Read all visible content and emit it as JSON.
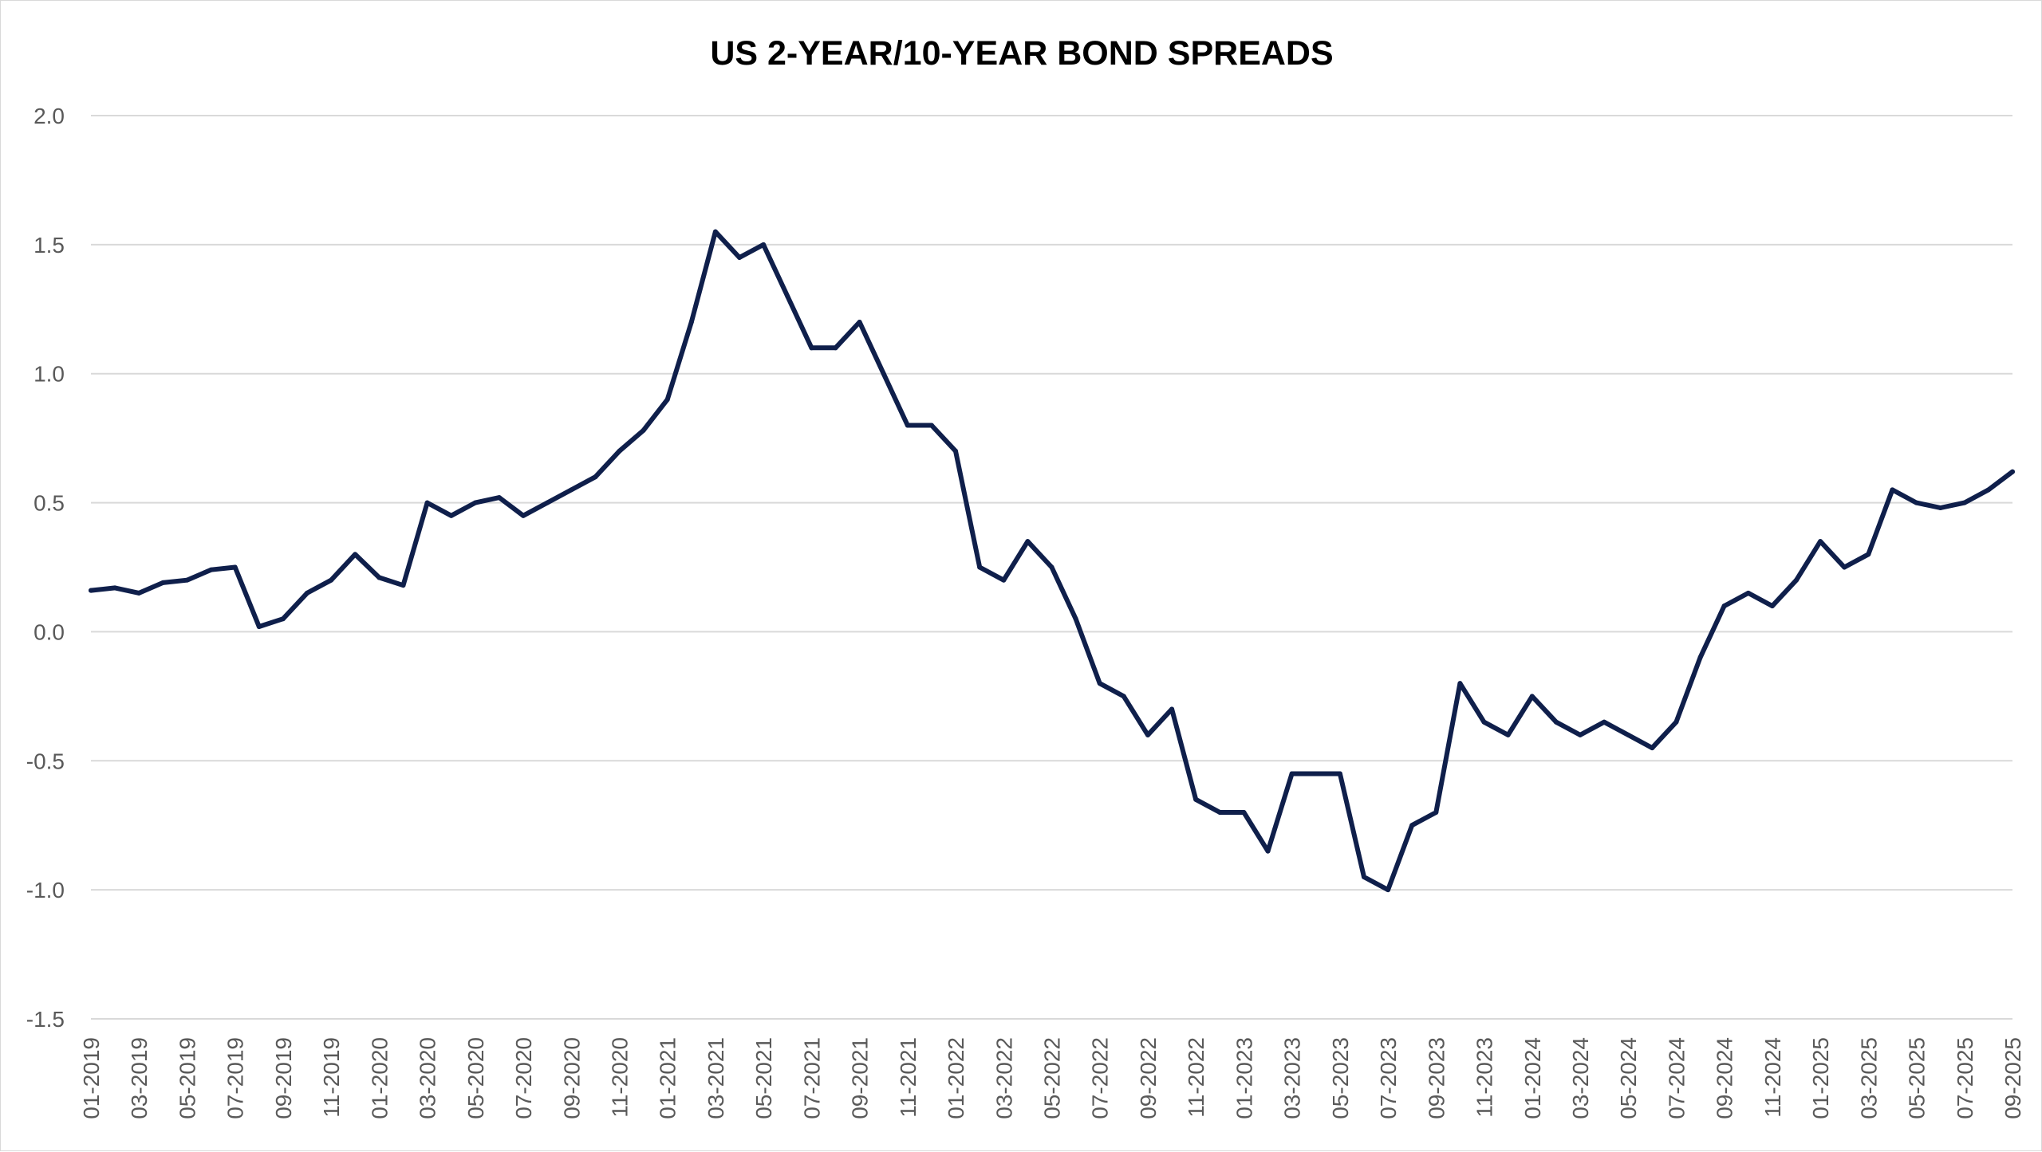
{
  "chart_data": {
    "type": "line",
    "title": "US 2-YEAR/10-YEAR BOND SPREADS",
    "xlabel": "",
    "ylabel": "",
    "ylim": [
      -1.5,
      2.0
    ],
    "y_ticks": [
      "2.0",
      "1.5",
      "1.0",
      "0.5",
      "0.0",
      "-0.5",
      "-1.0",
      "-1.5"
    ],
    "x_ticks": [
      "01-2019",
      "03-2019",
      "05-2019",
      "07-2019",
      "09-2019",
      "11-2019",
      "01-2020",
      "03-2020",
      "05-2020",
      "07-2020",
      "09-2020",
      "11-2020",
      "01-2021",
      "03-2021",
      "05-2021",
      "07-2021",
      "09-2021",
      "11-2021",
      "01-2022",
      "03-2022",
      "05-2022",
      "07-2022",
      "09-2022",
      "11-2022",
      "01-2023",
      "03-2023",
      "05-2023",
      "07-2023",
      "09-2023",
      "11-2023",
      "01-2024",
      "03-2024",
      "05-2024",
      "07-2024",
      "09-2024",
      "11-2024",
      "01-2025",
      "03-2025",
      "05-2025",
      "07-2025",
      "09-2025"
    ],
    "grid": true,
    "legend": "none",
    "line_color": "#0f1f4b",
    "series": [
      {
        "x": [
          "2019-01",
          "2019-02",
          "2019-03",
          "2019-04",
          "2019-05",
          "2019-06",
          "2019-07",
          "2019-08",
          "2019-09",
          "2019-10",
          "2019-11",
          "2019-12",
          "2020-01",
          "2020-02",
          "2020-03",
          "2020-04",
          "2020-05",
          "2020-06",
          "2020-07",
          "2020-08",
          "2020-09",
          "2020-10",
          "2020-11",
          "2020-12",
          "2021-01",
          "2021-02",
          "2021-03",
          "2021-04",
          "2021-05",
          "2021-06",
          "2021-07",
          "2021-08",
          "2021-09",
          "2021-10",
          "2021-11",
          "2021-12",
          "2022-01",
          "2022-02",
          "2022-03",
          "2022-04",
          "2022-05",
          "2022-06",
          "2022-07",
          "2022-08",
          "2022-09",
          "2022-10",
          "2022-11",
          "2022-12",
          "2023-01",
          "2023-02",
          "2023-03",
          "2023-04",
          "2023-05",
          "2023-06",
          "2023-07",
          "2023-08",
          "2023-09",
          "2023-10",
          "2023-11",
          "2023-12",
          "2024-01",
          "2024-02",
          "2024-03",
          "2024-04",
          "2024-05",
          "2024-06",
          "2024-07",
          "2024-08",
          "2024-09",
          "2024-10",
          "2024-11",
          "2024-12",
          "2025-01",
          "2025-02",
          "2025-03",
          "2025-04",
          "2025-05",
          "2025-06",
          "2025-07",
          "2025-08",
          "2025-09"
        ],
        "values": [
          0.16,
          0.17,
          0.15,
          0.19,
          0.2,
          0.24,
          0.25,
          0.02,
          0.05,
          0.15,
          0.2,
          0.3,
          0.21,
          0.18,
          0.5,
          0.45,
          0.5,
          0.52,
          0.45,
          0.5,
          0.55,
          0.6,
          0.7,
          0.78,
          0.9,
          1.2,
          1.55,
          1.45,
          1.5,
          1.3,
          1.1,
          1.1,
          1.2,
          1.0,
          0.8,
          0.8,
          0.7,
          0.25,
          0.2,
          0.35,
          0.25,
          0.05,
          -0.2,
          -0.25,
          -0.4,
          -0.3,
          -0.65,
          -0.7,
          -0.7,
          -0.85,
          -0.55,
          -0.55,
          -0.55,
          -0.95,
          -1.0,
          -0.75,
          -0.7,
          -0.2,
          -0.35,
          -0.4,
          -0.25,
          -0.35,
          -0.4,
          -0.35,
          -0.4,
          -0.45,
          -0.35,
          -0.1,
          0.1,
          0.15,
          0.1,
          0.2,
          0.35,
          0.25,
          0.3,
          0.55,
          0.5,
          0.48,
          0.5,
          0.55,
          0.62
        ]
      }
    ]
  }
}
